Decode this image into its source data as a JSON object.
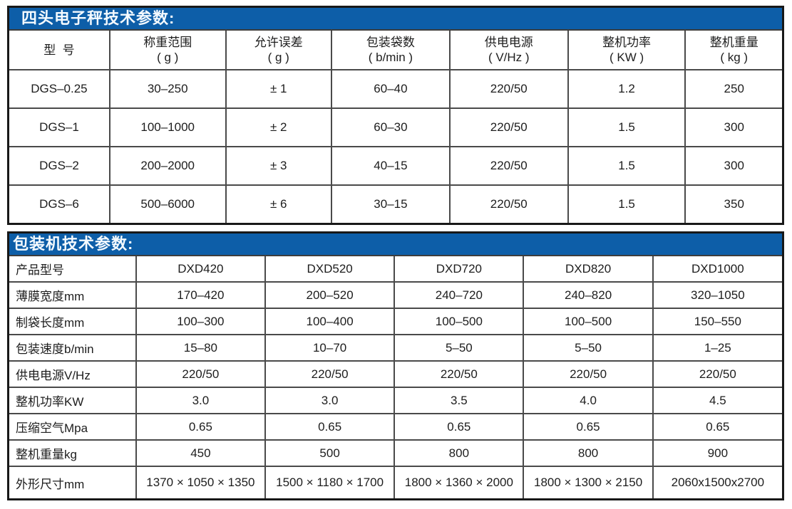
{
  "accent_color": "#0d5ea8",
  "scale_table": {
    "title": "四头电子秤技术参数:",
    "columns": [
      {
        "line1": "型  号",
        "line2": ""
      },
      {
        "line1": "称重范围",
        "line2": "( g )"
      },
      {
        "line1": "允许误差",
        "line2": "( g )"
      },
      {
        "line1": "包装袋数",
        "line2": "( b/min )"
      },
      {
        "line1": "供电电源",
        "line2": "( V/Hz )"
      },
      {
        "line1": "整机功率",
        "line2": "( KW )"
      },
      {
        "line1": "整机重量",
        "line2": "( kg )"
      }
    ],
    "rows": [
      [
        "DGS–0.25",
        "30–250",
        "± 1",
        "60–40",
        "220/50",
        "1.2",
        "250"
      ],
      [
        "DGS–1",
        "100–1000",
        "± 2",
        "60–30",
        "220/50",
        "1.5",
        "300"
      ],
      [
        "DGS–2",
        "200–2000",
        "± 3",
        "40–15",
        "220/50",
        "1.5",
        "300"
      ],
      [
        "DGS–6",
        "500–6000",
        "± 6",
        "30–15",
        "220/50",
        "1.5",
        "350"
      ]
    ]
  },
  "packer_table": {
    "title": "包装机技术参数:",
    "rows": [
      [
        "产品型号",
        "DXD420",
        "DXD520",
        "DXD720",
        "DXD820",
        "DXD1000"
      ],
      [
        "薄膜宽度mm",
        "170–420",
        "200–520",
        "240–720",
        "240–820",
        "320–1050"
      ],
      [
        "制袋长度mm",
        "100–300",
        "100–400",
        "100–500",
        "100–500",
        "150–550"
      ],
      [
        "包装速度b/min",
        "15–80",
        "10–70",
        "5–50",
        "5–50",
        "1–25"
      ],
      [
        "供电电源V/Hz",
        "220/50",
        "220/50",
        "220/50",
        "220/50",
        "220/50"
      ],
      [
        "整机功率KW",
        "3.0",
        "3.0",
        "3.5",
        "4.0",
        "4.5"
      ],
      [
        "压缩空气Mpa",
        "0.65",
        "0.65",
        "0.65",
        "0.65",
        "0.65"
      ],
      [
        "整机重量kg",
        "450",
        "500",
        "800",
        "800",
        "900"
      ],
      [
        "外形尺寸mm",
        "1370 × 1050 × 1350",
        "1500 × 1180 × 1700",
        "1800 × 1360 × 2000",
        "1800 × 1300 × 2150",
        "2060x1500x2700"
      ]
    ]
  }
}
